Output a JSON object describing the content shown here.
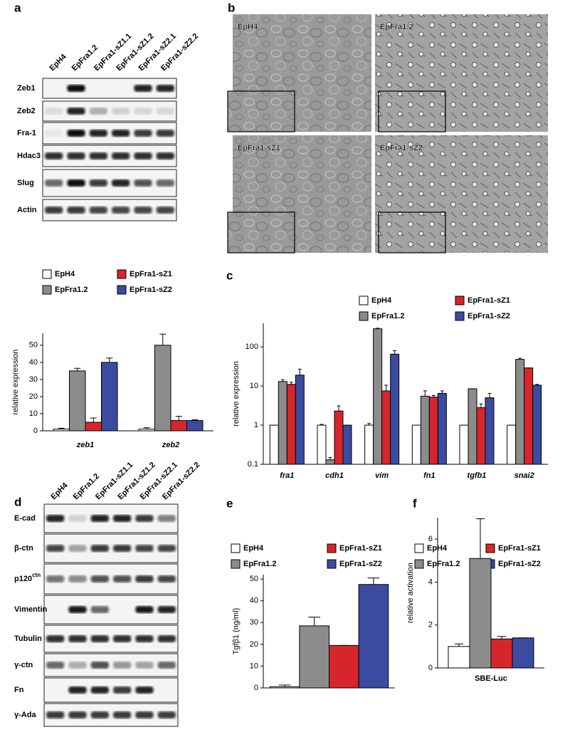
{
  "panel_labels": [
    "a",
    "b",
    "c",
    "d",
    "e",
    "f"
  ],
  "blot_a": {
    "lanes": [
      "EpH4",
      "EpFra1.2",
      "EpFra1-sZ1.1",
      "EpFra1-sZ1.2",
      "EpFra1-sZ2.1",
      "EpFra1-sZ2.2"
    ],
    "rows": [
      "Zeb1",
      "Zeb2",
      "Fra-1",
      "Hdac3",
      "Slug",
      "Actin"
    ]
  },
  "micrographs": [
    "EpH4",
    "EpFra1.2",
    "EpFra1-sZ1",
    "EpFra1-sZ2"
  ],
  "blot_d": {
    "lanes": [
      "EpH4",
      "EpFra1.2",
      "EpFra1-sZ1.1",
      "EpFra1-sZ1.2",
      "EpFra1-sZ2.1",
      "EpFra1-sZ2.2"
    ],
    "rows": [
      "E-cad",
      "β-ctn",
      {
        "text": "p120",
        "superscript": "ctn"
      },
      "Vimentin",
      "Tubulin",
      "γ-ctn",
      "Fn",
      "γ-Ada"
    ]
  },
  "chart_data": [
    {
      "type": "bar",
      "y_label": "relative expression",
      "categories": [
        "zeb1",
        "zeb2"
      ],
      "ylim": [
        0,
        57
      ],
      "yticks": [
        0,
        10,
        20,
        30,
        40,
        50
      ],
      "series": [
        {
          "name": "EpH4",
          "color": "#ffffff",
          "values": [
            1,
            1
          ],
          "errors": [
            0.5,
            0.8
          ]
        },
        {
          "name": "EpFra1.2",
          "color": "#8c8c8c",
          "values": [
            35,
            50
          ],
          "errors": [
            1.5,
            6.5
          ]
        },
        {
          "name": "EpFra1-sZ1",
          "color": "#d7262b",
          "values": [
            5,
            6
          ],
          "errors": [
            2.5,
            2.5
          ]
        },
        {
          "name": "EpFra1-sZ2",
          "color": "#3a4ba0",
          "values": [
            40,
            6
          ],
          "errors": [
            2.5,
            0.5
          ]
        }
      ]
    },
    {
      "type": "bar",
      "y_label": "relative expression",
      "log_scale": true,
      "categories": [
        "fra1",
        "cdh1",
        "vim",
        "fn1",
        "tgfb1",
        "snai2"
      ],
      "ylim": [
        0.1,
        400
      ],
      "yticks": [
        0.1,
        1,
        10,
        100
      ],
      "series": [
        {
          "name": "EpH4",
          "color": "#ffffff",
          "values": [
            1,
            1,
            1,
            1,
            1,
            1
          ],
          "errors": [
            0,
            0.05,
            0.1,
            0,
            0,
            0
          ]
        },
        {
          "name": "EpFra1.2",
          "color": "#8c8c8c",
          "values": [
            13,
            0.13,
            290,
            5.5,
            8.5,
            48
          ],
          "errors": [
            1.5,
            0.02,
            10,
            2,
            0,
            3
          ]
        },
        {
          "name": "EpFra1-sZ1",
          "color": "#d7262b",
          "values": [
            11,
            2.3,
            7.5,
            5.2,
            2.8,
            29
          ],
          "errors": [
            1.5,
            0.8,
            3,
            0.5,
            0.7,
            0
          ]
        },
        {
          "name": "EpFra1-sZ2",
          "color": "#3a4ba0",
          "values": [
            19,
            1,
            65,
            6.5,
            5,
            10.5
          ],
          "errors": [
            8,
            0,
            15,
            1,
            1.5,
            0.5
          ]
        }
      ]
    },
    {
      "type": "bar",
      "y_label": "Tgfβ1 (ng/ml)",
      "categories": [
        null
      ],
      "ylim": [
        0,
        52
      ],
      "yticks": [
        0,
        10,
        20,
        30,
        40,
        50
      ],
      "series": [
        {
          "name": "EpH4",
          "color": "#ffffff",
          "values": [
            0.5
          ],
          "errors": [
            0.8
          ]
        },
        {
          "name": "EpFra1.2",
          "color": "#8c8c8c",
          "values": [
            28.5
          ],
          "errors": [
            4
          ]
        },
        {
          "name": "EpFra1-sZ1",
          "color": "#d7262b",
          "values": [
            19.5
          ],
          "errors": [
            0
          ]
        },
        {
          "name": "EpFra1-sZ2",
          "color": "#3a4ba0",
          "values": [
            47.5
          ],
          "errors": [
            3
          ]
        }
      ]
    },
    {
      "type": "bar",
      "y_label": "relative activation",
      "categories": [
        "SBE-Luc"
      ],
      "ylim": [
        0,
        7
      ],
      "yticks": [
        0,
        2,
        4,
        6
      ],
      "series": [
        {
          "name": "EpH4",
          "color": "#ffffff",
          "values": [
            1
          ],
          "errors": [
            0.12
          ]
        },
        {
          "name": "EpFra1.2",
          "color": "#8c8c8c",
          "values": [
            5.1
          ],
          "errors": [
            1.85
          ]
        },
        {
          "name": "EpFra1-sZ1",
          "color": "#d7262b",
          "values": [
            1.35
          ],
          "errors": [
            0.12
          ]
        },
        {
          "name": "EpFra1-sZ2",
          "color": "#3a4ba0",
          "values": [
            1.4
          ],
          "errors": [
            0
          ]
        }
      ]
    }
  ]
}
